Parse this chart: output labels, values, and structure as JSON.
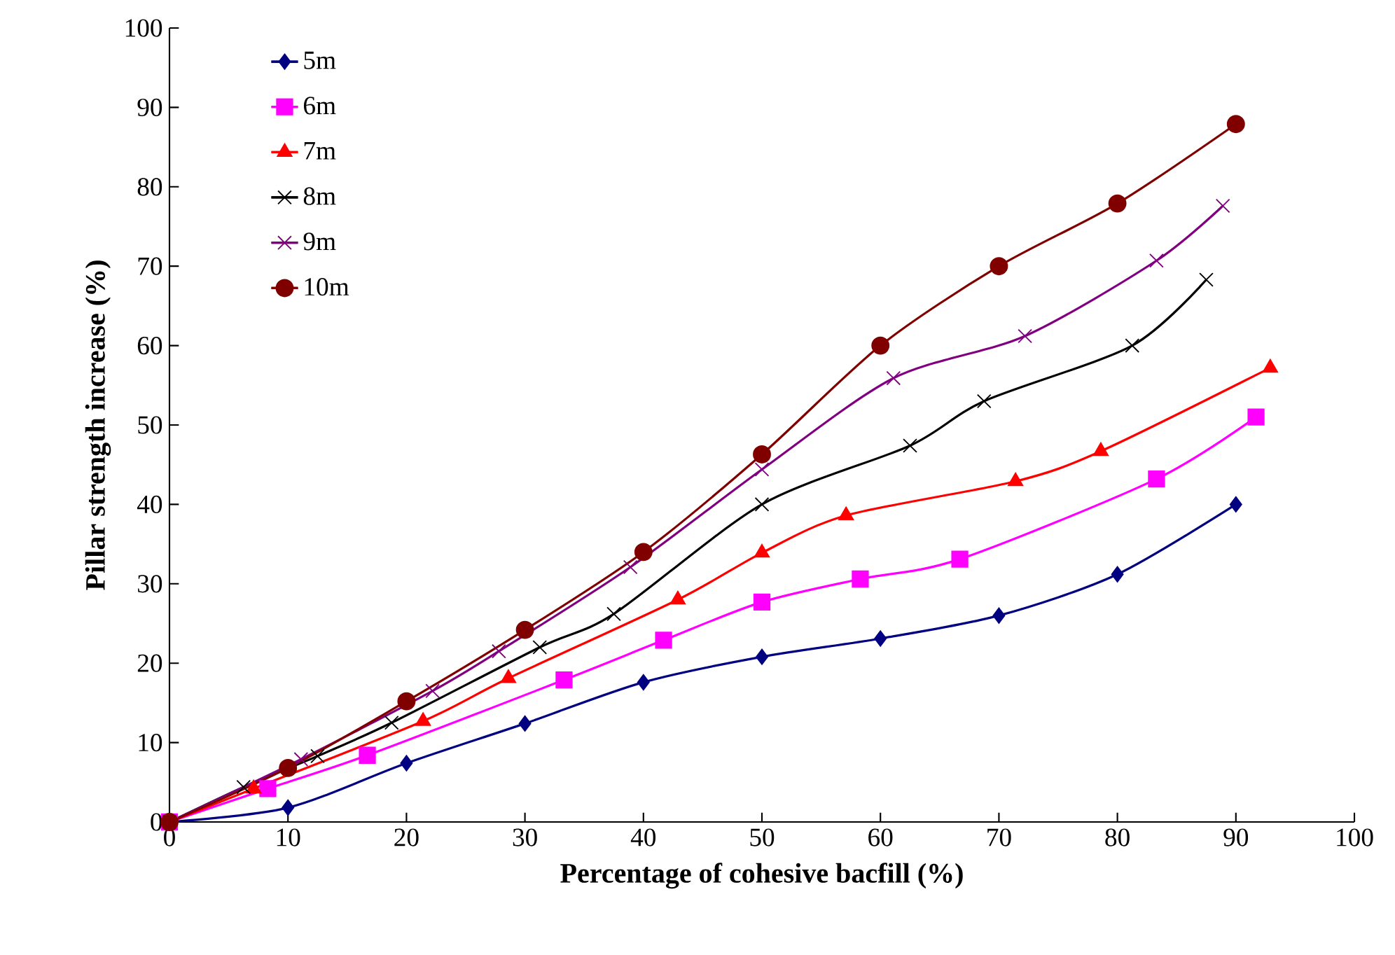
{
  "chart_data": {
    "type": "line",
    "xlabel": "Percentage of cohesive bacfill (%)",
    "ylabel": "Pillar strength increase (%)",
    "xlim": [
      0,
      100
    ],
    "ylim": [
      0,
      100
    ],
    "xticks": [
      0,
      10,
      20,
      30,
      40,
      50,
      60,
      70,
      80,
      90,
      100
    ],
    "yticks": [
      0,
      10,
      20,
      30,
      40,
      50,
      60,
      70,
      80,
      90,
      100
    ],
    "grid": false,
    "legend": "top left",
    "series": [
      {
        "name": "5m",
        "color": "#000080",
        "marker": "diamond",
        "x": [
          0,
          10,
          20,
          30,
          40,
          50,
          60,
          70,
          80,
          90
        ],
        "values": [
          0,
          1.8,
          7.4,
          12.4,
          17.6,
          20.8,
          23.1,
          26,
          31.2,
          40
        ]
      },
      {
        "name": "6m",
        "color": "#ff00ff",
        "marker": "square",
        "x": [
          0,
          8.3,
          16.7,
          33.3,
          41.7,
          50,
          58.3,
          66.7,
          83.3,
          91.7
        ],
        "values": [
          0,
          4.2,
          8.4,
          17.9,
          22.9,
          27.7,
          30.6,
          33.1,
          43.2,
          51
        ]
      },
      {
        "name": "7m",
        "color": "#ff0000",
        "marker": "triangle",
        "x": [
          0,
          7.1,
          21.4,
          28.6,
          42.9,
          50,
          57.1,
          71.4,
          78.6,
          92.9
        ],
        "values": [
          0,
          4.2,
          12.7,
          18.1,
          28,
          33.9,
          38.6,
          42.9,
          46.7,
          57.2
        ]
      },
      {
        "name": "8m",
        "color": "#000000",
        "marker": "cross",
        "x": [
          0,
          6.25,
          12.5,
          18.75,
          31.25,
          37.5,
          50,
          62.5,
          68.75,
          81.25,
          87.5
        ],
        "values": [
          0,
          4.4,
          8.3,
          12.5,
          22,
          26.2,
          40,
          47.4,
          53,
          60,
          68.3
        ]
      },
      {
        "name": "9m",
        "color": "#800080",
        "marker": "cross",
        "x": [
          0,
          11.1,
          22.2,
          27.8,
          38.9,
          50,
          61.1,
          72.2,
          83.3,
          88.9
        ],
        "values": [
          0,
          7.9,
          16.5,
          21.5,
          32.1,
          44.4,
          55.9,
          61.2,
          70.7,
          77.6
        ]
      },
      {
        "name": "10m",
        "color": "#800000",
        "marker": "circle",
        "x": [
          0,
          10,
          20,
          30,
          40,
          50,
          60,
          70,
          80,
          90
        ],
        "values": [
          0,
          6.8,
          15.2,
          24.2,
          34,
          46.3,
          60,
          70,
          77.9,
          87.9
        ]
      }
    ]
  }
}
